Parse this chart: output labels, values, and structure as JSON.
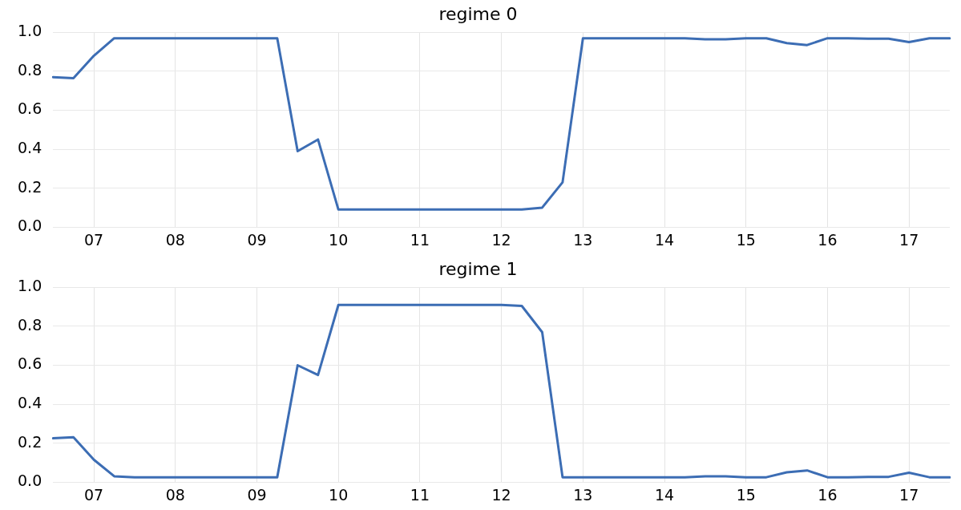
{
  "chart_data": [
    {
      "type": "line",
      "title": "regime 0",
      "categories": [
        null,
        null,
        "07",
        null,
        null,
        null,
        "08",
        null,
        null,
        null,
        "09",
        null,
        null,
        null,
        "10",
        null,
        null,
        null,
        "11",
        null,
        null,
        null,
        "12",
        null,
        null,
        null,
        "13",
        null,
        null,
        null,
        "14",
        null,
        null,
        null,
        "15",
        null,
        null,
        null,
        "16",
        null,
        null,
        null,
        "17",
        null,
        null
      ],
      "series": [
        {
          "color": "#3c6db4",
          "values": [
            0.77,
            0.765,
            0.88,
            0.97,
            0.97,
            0.97,
            0.97,
            0.97,
            0.97,
            0.97,
            0.97,
            0.97,
            0.39,
            0.45,
            0.09,
            0.09,
            0.09,
            0.09,
            0.09,
            0.09,
            0.09,
            0.09,
            0.09,
            0.09,
            0.1,
            0.23,
            0.97,
            0.97,
            0.97,
            0.97,
            0.97,
            0.97,
            0.965,
            0.965,
            0.97,
            0.97,
            0.945,
            0.935,
            0.97,
            0.97,
            0.968,
            0.968,
            0.95,
            0.97,
            0.97
          ]
        }
      ],
      "ylim": [
        0,
        1
      ],
      "yticks": [
        {
          "value": 0,
          "label": "0.0"
        },
        {
          "value": 0.2,
          "label": "0.2"
        },
        {
          "value": 0.4,
          "label": "0.4"
        },
        {
          "value": 0.6,
          "label": "0.6"
        },
        {
          "value": 0.8,
          "label": "0.8"
        },
        {
          "value": 1,
          "label": "1.0"
        }
      ],
      "grid": true,
      "marker": "none",
      "line_style": "solid"
    },
    {
      "type": "line",
      "title": "regime 1",
      "categories": [
        null,
        null,
        "07",
        null,
        null,
        null,
        "08",
        null,
        null,
        null,
        "09",
        null,
        null,
        null,
        "10",
        null,
        null,
        null,
        "11",
        null,
        null,
        null,
        "12",
        null,
        null,
        null,
        "13",
        null,
        null,
        null,
        "14",
        null,
        null,
        null,
        "15",
        null,
        null,
        null,
        "16",
        null,
        null,
        null,
        "17",
        null,
        null
      ],
      "series": [
        {
          "color": "#3c6db4",
          "values": [
            0.225,
            0.23,
            0.115,
            0.03,
            0.025,
            0.025,
            0.025,
            0.025,
            0.025,
            0.025,
            0.025,
            0.025,
            0.6,
            0.55,
            0.91,
            0.91,
            0.91,
            0.91,
            0.91,
            0.91,
            0.91,
            0.91,
            0.91,
            0.905,
            0.77,
            0.025,
            0.025,
            0.025,
            0.025,
            0.025,
            0.025,
            0.025,
            0.03,
            0.03,
            0.025,
            0.025,
            0.05,
            0.06,
            0.025,
            0.025,
            0.027,
            0.027,
            0.048,
            0.025,
            0.025
          ]
        }
      ],
      "ylim": [
        0,
        1
      ],
      "yticks": [
        {
          "value": 0,
          "label": "0.0"
        },
        {
          "value": 0.2,
          "label": "0.2"
        },
        {
          "value": 0.4,
          "label": "0.4"
        },
        {
          "value": 0.6,
          "label": "0.6"
        },
        {
          "value": 0.8,
          "label": "0.8"
        },
        {
          "value": 1,
          "label": "1.0"
        }
      ],
      "grid": true,
      "marker": "none",
      "line_style": "solid"
    }
  ]
}
